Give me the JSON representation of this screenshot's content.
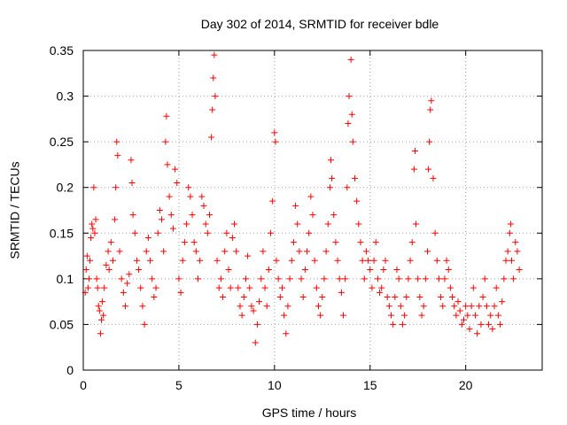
{
  "chart_data": {
    "type": "scatter",
    "title": "Day 302 of 2014, SRMTID for receiver bdle",
    "xlabel": "GPS time / hours",
    "ylabel": "SRMTID / TECUs",
    "xlim": [
      0,
      24
    ],
    "ylim": [
      0,
      0.35
    ],
    "x_ticks": [
      0,
      5,
      10,
      15,
      20
    ],
    "x_tick_labels": [
      "0",
      "5",
      "10",
      "15",
      "20"
    ],
    "y_ticks": [
      0,
      0.05,
      0.1,
      0.15,
      0.2,
      0.25,
      0.3,
      0.35
    ],
    "y_tick_labels": [
      "0",
      "0.05",
      "0.1",
      "0.15",
      "0.2",
      "0.25",
      "0.3",
      "0.35"
    ],
    "grid": true,
    "marker": "+",
    "color": "#ff0000",
    "series": [
      {
        "name": "SRMTID",
        "points": [
          [
            0.1,
            0.085
          ],
          [
            0.15,
            0.11
          ],
          [
            0.2,
            0.125
          ],
          [
            0.25,
            0.09
          ],
          [
            0.3,
            0.1
          ],
          [
            0.35,
            0.12
          ],
          [
            0.4,
            0.145
          ],
          [
            0.45,
            0.16
          ],
          [
            0.5,
            0.155
          ],
          [
            0.55,
            0.2
          ],
          [
            0.6,
            0.15
          ],
          [
            0.65,
            0.165
          ],
          [
            0.7,
            0.1
          ],
          [
            0.75,
            0.09
          ],
          [
            0.8,
            0.07
          ],
          [
            0.85,
            0.065
          ],
          [
            0.9,
            0.04
          ],
          [
            0.95,
            0.055
          ],
          [
            1.0,
            0.075
          ],
          [
            1.05,
            0.06
          ],
          [
            1.1,
            0.09
          ],
          [
            1.2,
            0.115
          ],
          [
            1.3,
            0.13
          ],
          [
            1.35,
            0.11
          ],
          [
            1.45,
            0.14
          ],
          [
            1.55,
            0.12
          ],
          [
            1.65,
            0.165
          ],
          [
            1.7,
            0.2
          ],
          [
            1.75,
            0.25
          ],
          [
            1.8,
            0.235
          ],
          [
            1.9,
            0.13
          ],
          [
            2.0,
            0.1
          ],
          [
            2.1,
            0.085
          ],
          [
            2.2,
            0.07
          ],
          [
            2.3,
            0.095
          ],
          [
            2.4,
            0.105
          ],
          [
            2.5,
            0.23
          ],
          [
            2.55,
            0.205
          ],
          [
            2.6,
            0.17
          ],
          [
            2.7,
            0.15
          ],
          [
            2.8,
            0.12
          ],
          [
            2.9,
            0.11
          ],
          [
            3.0,
            0.09
          ],
          [
            3.1,
            0.07
          ],
          [
            3.2,
            0.05
          ],
          [
            3.3,
            0.13
          ],
          [
            3.4,
            0.145
          ],
          [
            3.5,
            0.12
          ],
          [
            3.6,
            0.1
          ],
          [
            3.7,
            0.08
          ],
          [
            3.8,
            0.09
          ],
          [
            3.9,
            0.15
          ],
          [
            4.0,
            0.175
          ],
          [
            4.1,
            0.165
          ],
          [
            4.2,
            0.13
          ],
          [
            4.3,
            0.25
          ],
          [
            4.35,
            0.278
          ],
          [
            4.4,
            0.225
          ],
          [
            4.5,
            0.19
          ],
          [
            4.6,
            0.17
          ],
          [
            4.7,
            0.155
          ],
          [
            4.8,
            0.22
          ],
          [
            4.9,
            0.205
          ],
          [
            5.0,
            0.1
          ],
          [
            5.1,
            0.085
          ],
          [
            5.2,
            0.12
          ],
          [
            5.3,
            0.14
          ],
          [
            5.4,
            0.16
          ],
          [
            5.5,
            0.2
          ],
          [
            5.6,
            0.19
          ],
          [
            5.7,
            0.17
          ],
          [
            5.8,
            0.14
          ],
          [
            5.9,
            0.13
          ],
          [
            6.0,
            0.1
          ],
          [
            6.1,
            0.12
          ],
          [
            6.2,
            0.19
          ],
          [
            6.3,
            0.18
          ],
          [
            6.4,
            0.16
          ],
          [
            6.5,
            0.15
          ],
          [
            6.6,
            0.17
          ],
          [
            6.7,
            0.255
          ],
          [
            6.75,
            0.285
          ],
          [
            6.8,
            0.32
          ],
          [
            6.85,
            0.345
          ],
          [
            6.9,
            0.3
          ],
          [
            7.0,
            0.12
          ],
          [
            7.1,
            0.09
          ],
          [
            7.2,
            0.1
          ],
          [
            7.3,
            0.08
          ],
          [
            7.4,
            0.13
          ],
          [
            7.5,
            0.15
          ],
          [
            7.6,
            0.11
          ],
          [
            7.7,
            0.09
          ],
          [
            7.8,
            0.145
          ],
          [
            7.9,
            0.16
          ],
          [
            8.0,
            0.13
          ],
          [
            8.1,
            0.09
          ],
          [
            8.2,
            0.07
          ],
          [
            8.3,
            0.06
          ],
          [
            8.4,
            0.08
          ],
          [
            8.5,
            0.1
          ],
          [
            8.6,
            0.125
          ],
          [
            8.7,
            0.09
          ],
          [
            8.8,
            0.07
          ],
          [
            8.9,
            0.065
          ],
          [
            9.0,
            0.03
          ],
          [
            9.1,
            0.05
          ],
          [
            9.2,
            0.075
          ],
          [
            9.3,
            0.1
          ],
          [
            9.4,
            0.13
          ],
          [
            9.5,
            0.09
          ],
          [
            9.6,
            0.07
          ],
          [
            9.7,
            0.11
          ],
          [
            9.8,
            0.15
          ],
          [
            9.9,
            0.185
          ],
          [
            10.0,
            0.26
          ],
          [
            10.05,
            0.25
          ],
          [
            10.1,
            0.12
          ],
          [
            10.2,
            0.1
          ],
          [
            10.3,
            0.08
          ],
          [
            10.4,
            0.09
          ],
          [
            10.5,
            0.06
          ],
          [
            10.6,
            0.04
          ],
          [
            10.7,
            0.07
          ],
          [
            10.8,
            0.1
          ],
          [
            10.9,
            0.12
          ],
          [
            11.0,
            0.14
          ],
          [
            11.1,
            0.18
          ],
          [
            11.2,
            0.16
          ],
          [
            11.3,
            0.13
          ],
          [
            11.4,
            0.1
          ],
          [
            11.5,
            0.08
          ],
          [
            11.6,
            0.11
          ],
          [
            11.7,
            0.13
          ],
          [
            11.8,
            0.15
          ],
          [
            11.9,
            0.19
          ],
          [
            12.0,
            0.17
          ],
          [
            12.1,
            0.12
          ],
          [
            12.2,
            0.09
          ],
          [
            12.3,
            0.07
          ],
          [
            12.4,
            0.06
          ],
          [
            12.5,
            0.08
          ],
          [
            12.6,
            0.1
          ],
          [
            12.7,
            0.13
          ],
          [
            12.8,
            0.16
          ],
          [
            12.9,
            0.2
          ],
          [
            12.95,
            0.23
          ],
          [
            13.0,
            0.21
          ],
          [
            13.1,
            0.17
          ],
          [
            13.2,
            0.14
          ],
          [
            13.3,
            0.12
          ],
          [
            13.4,
            0.1
          ],
          [
            13.5,
            0.085
          ],
          [
            13.6,
            0.06
          ],
          [
            13.7,
            0.1
          ],
          [
            13.8,
            0.2
          ],
          [
            13.85,
            0.27
          ],
          [
            13.9,
            0.3
          ],
          [
            14.0,
            0.34
          ],
          [
            14.05,
            0.28
          ],
          [
            14.1,
            0.25
          ],
          [
            14.2,
            0.21
          ],
          [
            14.3,
            0.185
          ],
          [
            14.4,
            0.16
          ],
          [
            14.5,
            0.14
          ],
          [
            14.6,
            0.12
          ],
          [
            14.7,
            0.1
          ],
          [
            14.8,
            0.13
          ],
          [
            14.9,
            0.12
          ],
          [
            15.0,
            0.11
          ],
          [
            15.1,
            0.09
          ],
          [
            15.2,
            0.12
          ],
          [
            15.3,
            0.14
          ],
          [
            15.4,
            0.1
          ],
          [
            15.5,
            0.085
          ],
          [
            15.6,
            0.09
          ],
          [
            15.7,
            0.11
          ],
          [
            15.8,
            0.12
          ],
          [
            15.9,
            0.08
          ],
          [
            16.0,
            0.07
          ],
          [
            16.1,
            0.06
          ],
          [
            16.2,
            0.05
          ],
          [
            16.3,
            0.08
          ],
          [
            16.4,
            0.11
          ],
          [
            16.5,
            0.1
          ],
          [
            16.6,
            0.07
          ],
          [
            16.7,
            0.05
          ],
          [
            16.8,
            0.06
          ],
          [
            16.9,
            0.08
          ],
          [
            17.0,
            0.1
          ],
          [
            17.1,
            0.12
          ],
          [
            17.2,
            0.14
          ],
          [
            17.3,
            0.22
          ],
          [
            17.35,
            0.24
          ],
          [
            17.4,
            0.16
          ],
          [
            17.5,
            0.1
          ],
          [
            17.6,
            0.08
          ],
          [
            17.7,
            0.06
          ],
          [
            17.8,
            0.07
          ],
          [
            17.9,
            0.1
          ],
          [
            18.0,
            0.13
          ],
          [
            18.05,
            0.22
          ],
          [
            18.1,
            0.25
          ],
          [
            18.15,
            0.285
          ],
          [
            18.2,
            0.295
          ],
          [
            18.3,
            0.21
          ],
          [
            18.4,
            0.15
          ],
          [
            18.5,
            0.12
          ],
          [
            18.6,
            0.1
          ],
          [
            18.7,
            0.08
          ],
          [
            18.8,
            0.07
          ],
          [
            18.9,
            0.1
          ],
          [
            19.0,
            0.12
          ],
          [
            19.1,
            0.11
          ],
          [
            19.2,
            0.09
          ],
          [
            19.3,
            0.08
          ],
          [
            19.4,
            0.07
          ],
          [
            19.5,
            0.06
          ],
          [
            19.6,
            0.075
          ],
          [
            19.7,
            0.065
          ],
          [
            19.8,
            0.05
          ],
          [
            19.9,
            0.055
          ],
          [
            20.0,
            0.07
          ],
          [
            20.1,
            0.06
          ],
          [
            20.2,
            0.045
          ],
          [
            20.3,
            0.07
          ],
          [
            20.4,
            0.09
          ],
          [
            20.5,
            0.06
          ],
          [
            20.6,
            0.04
          ],
          [
            20.7,
            0.07
          ],
          [
            20.8,
            0.05
          ],
          [
            20.9,
            0.08
          ],
          [
            21.0,
            0.1
          ],
          [
            21.1,
            0.07
          ],
          [
            21.2,
            0.05
          ],
          [
            21.3,
            0.06
          ],
          [
            21.4,
            0.045
          ],
          [
            21.5,
            0.07
          ],
          [
            21.6,
            0.09
          ],
          [
            21.7,
            0.06
          ],
          [
            21.8,
            0.05
          ],
          [
            21.9,
            0.075
          ],
          [
            22.0,
            0.1
          ],
          [
            22.1,
            0.12
          ],
          [
            22.2,
            0.13
          ],
          [
            22.3,
            0.15
          ],
          [
            22.35,
            0.16
          ],
          [
            22.4,
            0.12
          ],
          [
            22.5,
            0.1
          ],
          [
            22.6,
            0.14
          ],
          [
            22.7,
            0.13
          ],
          [
            22.8,
            0.11
          ]
        ]
      }
    ]
  }
}
